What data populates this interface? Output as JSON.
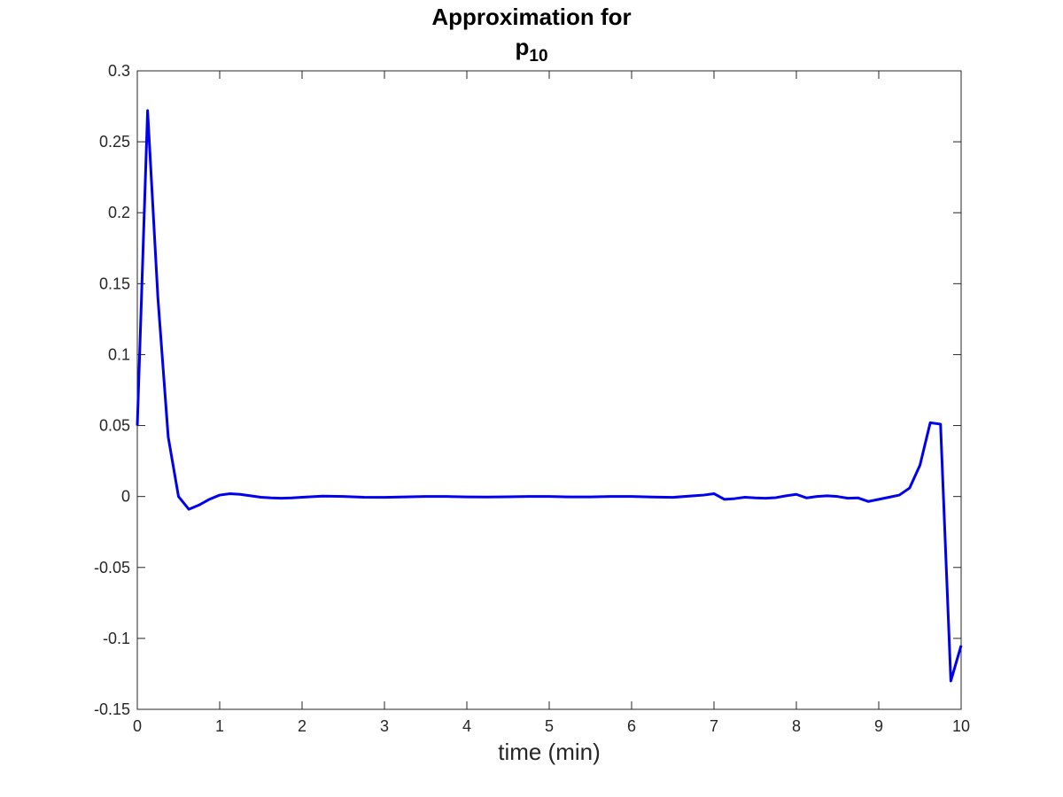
{
  "chart_data": {
    "type": "line",
    "title": {
      "line1": "Approximation for",
      "line2_base": "p",
      "line2_subscript": "10"
    },
    "xlabel": "time (min)",
    "ylabel": "",
    "xlim": [
      0,
      10
    ],
    "ylim": [
      -0.15,
      0.3
    ],
    "xticks": [
      0,
      1,
      2,
      3,
      4,
      5,
      6,
      7,
      8,
      9,
      10
    ],
    "xtick_labels": [
      "0",
      "1",
      "2",
      "3",
      "4",
      "5",
      "6",
      "7",
      "8",
      "9",
      "10"
    ],
    "yticks": [
      -0.15,
      -0.1,
      -0.05,
      0,
      0.05,
      0.1,
      0.15,
      0.2,
      0.25,
      0.3
    ],
    "ytick_labels": [
      "-0.15",
      "-0.1",
      "-0.05",
      "0",
      "0.05",
      "0.1",
      "0.15",
      "0.2",
      "0.25",
      "0.3"
    ],
    "grid": false,
    "series": [
      {
        "color": "#0000ee",
        "x": [
          0,
          0.125,
          0.25,
          0.375,
          0.5,
          0.625,
          0.75,
          0.875,
          1.0,
          1.125,
          1.25,
          1.375,
          1.5,
          1.625,
          1.75,
          1.875,
          2.0,
          2.25,
          2.5,
          2.75,
          3.0,
          3.25,
          3.5,
          3.75,
          4.0,
          4.25,
          4.5,
          4.75,
          5.0,
          5.25,
          5.5,
          5.75,
          6.0,
          6.25,
          6.5,
          6.75,
          6.875,
          7.0,
          7.125,
          7.25,
          7.375,
          7.5,
          7.625,
          7.75,
          7.875,
          8.0,
          8.125,
          8.25,
          8.375,
          8.5,
          8.625,
          8.75,
          8.875,
          9.0,
          9.125,
          9.25,
          9.375,
          9.5,
          9.625,
          9.75,
          9.875,
          10.0
        ],
        "y": [
          0.05,
          0.272,
          0.14,
          0.042,
          0.0,
          -0.009,
          -0.006,
          -0.002,
          0.001,
          0.002,
          0.0015,
          0.0005,
          -0.0005,
          -0.001,
          -0.0012,
          -0.001,
          -0.0005,
          0.0003,
          0.0,
          -0.0005,
          -0.0006,
          -0.0003,
          0.0,
          0.0,
          -0.0003,
          -0.0004,
          -0.0002,
          0.0,
          0.0,
          -0.0003,
          -0.0003,
          0.0,
          0.0,
          -0.0004,
          -0.0006,
          0.0005,
          0.001,
          0.002,
          -0.002,
          -0.0015,
          -0.0005,
          -0.001,
          -0.0012,
          -0.0008,
          0.0005,
          0.0015,
          -0.001,
          0.0,
          0.0005,
          0.0,
          -0.0012,
          -0.001,
          -0.0035,
          -0.002,
          -0.0005,
          0.001,
          0.006,
          0.022,
          0.052,
          0.051,
          -0.13,
          -0.105
        ]
      }
    ]
  }
}
